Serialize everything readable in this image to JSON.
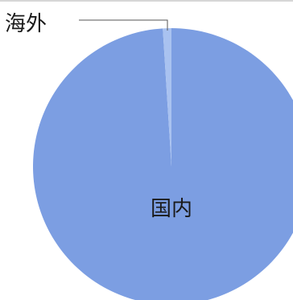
{
  "chart_data": {
    "type": "pie",
    "title": "",
    "slices": [
      {
        "label": "国内",
        "value": 99.0,
        "color": "#7c9ee2"
      },
      {
        "label": "海外",
        "value": 1.0,
        "color": "#a9c2f0"
      }
    ],
    "legend": "none"
  }
}
